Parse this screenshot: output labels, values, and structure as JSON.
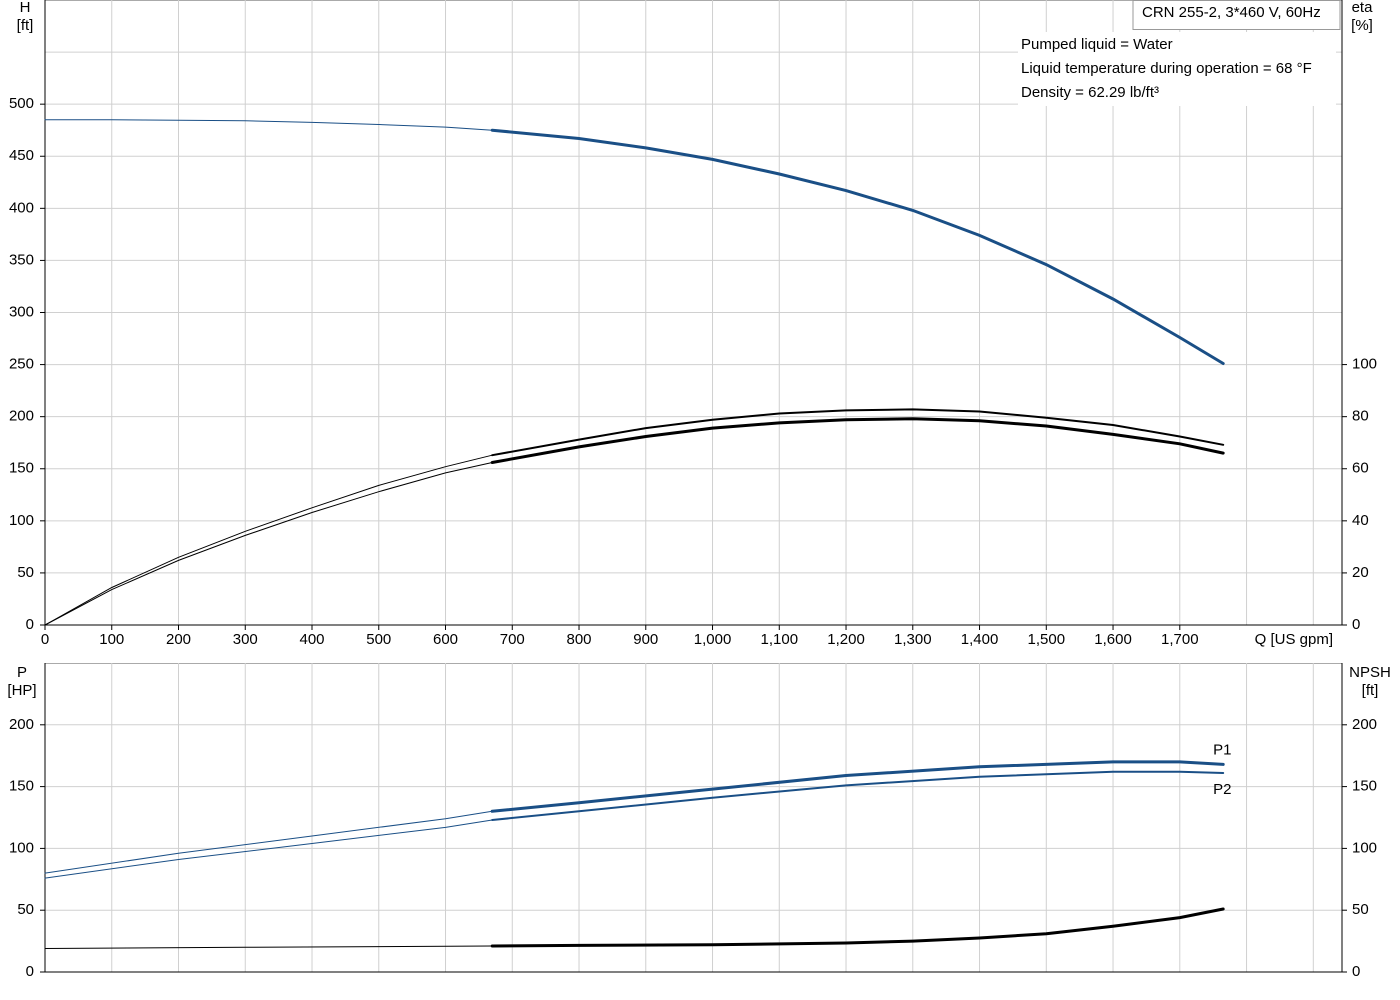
{
  "chart_data": [
    {
      "type": "line",
      "y_label": [
        "H",
        "[ft]"
      ],
      "y2_label": [
        "eta",
        "[%]"
      ],
      "x_label": "Q [US gpm]",
      "info_box": "CRN 255-2, 3*460 V, 60Hz",
      "notes": [
        "Pumped liquid = Water",
        "Liquid temperature during operation = 68 °F",
        "Density = 62.29 lb/ft³"
      ],
      "xlim": [
        0,
        1943
      ],
      "ylim": [
        0,
        600
      ],
      "y2lim": [
        0,
        240
      ],
      "grid": true,
      "xticks": [
        0,
        100,
        200,
        300,
        400,
        500,
        600,
        700,
        800,
        900,
        {
          "value": 1000,
          "label": "1,000"
        },
        {
          "value": 1100,
          "label": "1,100"
        },
        {
          "value": 1200,
          "label": "1,200"
        },
        {
          "value": 1300,
          "label": "1,300"
        },
        {
          "value": 1400,
          "label": "1,400"
        },
        {
          "value": 1500,
          "label": "1,500"
        },
        {
          "value": 1600,
          "label": "1,600"
        },
        {
          "value": 1700,
          "label": "1,700"
        },
        {
          "value": 1800,
          "label": null
        },
        {
          "value": 1900,
          "label": null
        }
      ],
      "yticks": [
        0,
        50,
        100,
        150,
        200,
        250,
        300,
        350,
        400,
        450,
        500,
        {
          "value": 550,
          "label": null
        }
      ],
      "y2ticks": [
        0,
        20,
        40,
        60,
        80,
        100
      ],
      "series": [
        {
          "color": "#1a4f86",
          "width": 1,
          "x": [
            0,
            100,
            200,
            300,
            400,
            500,
            600,
            670
          ],
          "values": [
            485,
            485,
            484.5,
            484,
            482.5,
            480.5,
            478,
            475
          ]
        },
        {
          "color": "#1a4f86",
          "width": 3,
          "x": [
            670,
            800,
            900,
            1000,
            1100,
            1200,
            1300,
            1400,
            1500,
            1600,
            1700,
            1765
          ],
          "values": [
            475,
            467,
            458,
            447,
            433,
            417,
            398,
            374,
            346,
            313,
            276,
            251
          ]
        },
        {
          "color": "#000000",
          "width": 1,
          "axis": "y2",
          "x": [
            0,
            100,
            200,
            300,
            400,
            500,
            600,
            670
          ],
          "values": [
            0,
            14.4,
            26,
            36,
            45,
            53.6,
            60.8,
            65.2
          ]
        },
        {
          "color": "#000000",
          "width": 2,
          "axis": "y2",
          "x": [
            670,
            800,
            900,
            1000,
            1100,
            1200,
            1300,
            1400,
            1500,
            1600,
            1700,
            1765
          ],
          "values": [
            65.2,
            71.2,
            75.6,
            78.8,
            81.2,
            82.4,
            82.8,
            82,
            79.6,
            76.8,
            72.4,
            69.2
          ]
        },
        {
          "color": "#000000",
          "width": 1,
          "axis": "y2",
          "x": [
            0,
            100,
            200,
            300,
            400,
            500,
            600,
            670
          ],
          "values": [
            0,
            13.6,
            24.8,
            34.4,
            43.2,
            51.2,
            58.4,
            62.4
          ]
        },
        {
          "color": "#000000",
          "width": 3,
          "axis": "y2",
          "x": [
            670,
            800,
            900,
            1000,
            1100,
            1200,
            1300,
            1400,
            1500,
            1600,
            1700,
            1765
          ],
          "values": [
            62.4,
            68.4,
            72.4,
            75.6,
            77.6,
            78.8,
            79.2,
            78.4,
            76.4,
            73.2,
            69.6,
            66
          ]
        }
      ]
    },
    {
      "type": "line",
      "y_label": [
        "P",
        "[HP]"
      ],
      "y2_label": [
        "NPSH",
        "[ft]"
      ],
      "xlim": [
        0,
        1943
      ],
      "ylim": [
        0,
        250
      ],
      "y2lim": [
        0,
        250
      ],
      "grid": true,
      "yticks": [
        0,
        50,
        100,
        150,
        200
      ],
      "y2ticks": [
        0,
        50,
        100,
        150,
        200
      ],
      "series": [
        {
          "color": "#1a4f86",
          "width": 1,
          "x": [
            0,
            200,
            400,
            600,
            670
          ],
          "values": [
            80,
            96,
            110,
            124,
            130
          ]
        },
        {
          "name": "P1",
          "color": "#1a4f86",
          "width": 3,
          "x": [
            670,
            800,
            1000,
            1200,
            1400,
            1600,
            1700,
            1765
          ],
          "values": [
            130,
            137,
            148,
            159,
            166,
            170,
            170,
            168
          ]
        },
        {
          "color": "#1a4f86",
          "width": 1,
          "x": [
            0,
            200,
            400,
            600,
            670
          ],
          "values": [
            76,
            91,
            104,
            117,
            123
          ]
        },
        {
          "name": "P2",
          "color": "#1a4f86",
          "width": 2,
          "x": [
            670,
            800,
            1000,
            1200,
            1400,
            1600,
            1700,
            1765
          ],
          "values": [
            123,
            130,
            141,
            151,
            158,
            162,
            162,
            161
          ]
        },
        {
          "color": "#000000",
          "width": 1,
          "axis": "y2",
          "x": [
            0,
            300,
            670
          ],
          "values": [
            19,
            20,
            21
          ]
        },
        {
          "color": "#000000",
          "width": 3,
          "axis": "y2",
          "x": [
            670,
            800,
            1000,
            1200,
            1300,
            1400,
            1500,
            1600,
            1700,
            1765
          ],
          "values": [
            21,
            21.5,
            22,
            23.5,
            25,
            27.5,
            31,
            37,
            44,
            51
          ]
        }
      ]
    }
  ]
}
